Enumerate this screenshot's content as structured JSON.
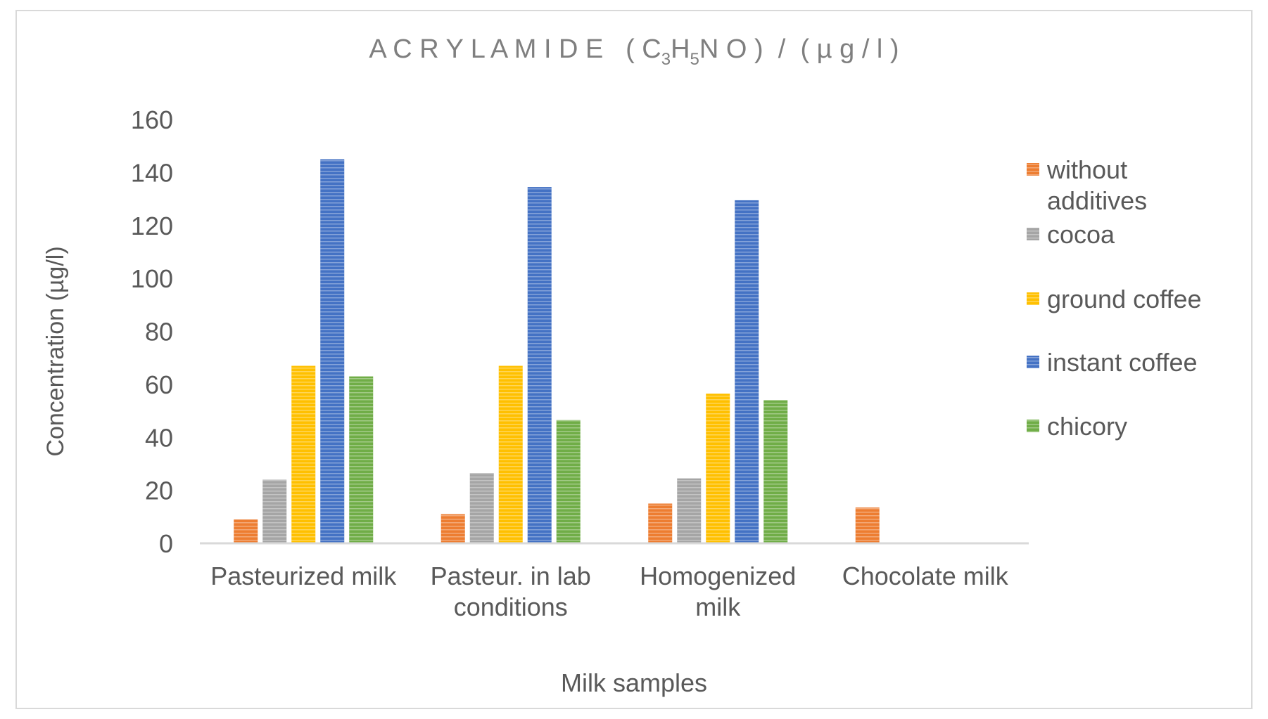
{
  "chart_data": {
    "type": "bar",
    "title": {
      "prefix": "A C R Y L A M I D E   ( C",
      "sub1": "3",
      "mid1": "H",
      "sub2": "5",
      "suffix": "N O )  /  ( µ g / l )"
    },
    "xlabel": "Milk samples",
    "ylabel": "Concentration (µg/l)",
    "ylim": [
      0,
      160
    ],
    "yticks": [
      "0",
      "20",
      "40",
      "60",
      "80",
      "100",
      "120",
      "140",
      "160"
    ],
    "grid": false,
    "legend_position": "right",
    "categories": [
      [
        "Pasteurized milk"
      ],
      [
        "Pasteur. in lab",
        "conditions"
      ],
      [
        "Homogenized",
        "milk"
      ],
      [
        "Chocolate milk"
      ]
    ],
    "series": [
      {
        "name": [
          "without",
          "additives"
        ],
        "color": "#ED7D31",
        "values": [
          9,
          11,
          15,
          13.5
        ]
      },
      {
        "name": [
          "cocoa"
        ],
        "color": "#A5A5A5",
        "values": [
          24,
          26.5,
          24.5,
          null
        ]
      },
      {
        "name": [
          "ground coffee"
        ],
        "color": "#FFC000",
        "values": [
          67,
          67,
          56.5,
          null
        ]
      },
      {
        "name": [
          "instant coffee"
        ],
        "color": "#4472C4",
        "values": [
          145,
          134.5,
          129.5,
          null
        ]
      },
      {
        "name": [
          "chicory"
        ],
        "color": "#70AD47",
        "values": [
          63,
          46.5,
          54,
          null
        ]
      }
    ]
  }
}
